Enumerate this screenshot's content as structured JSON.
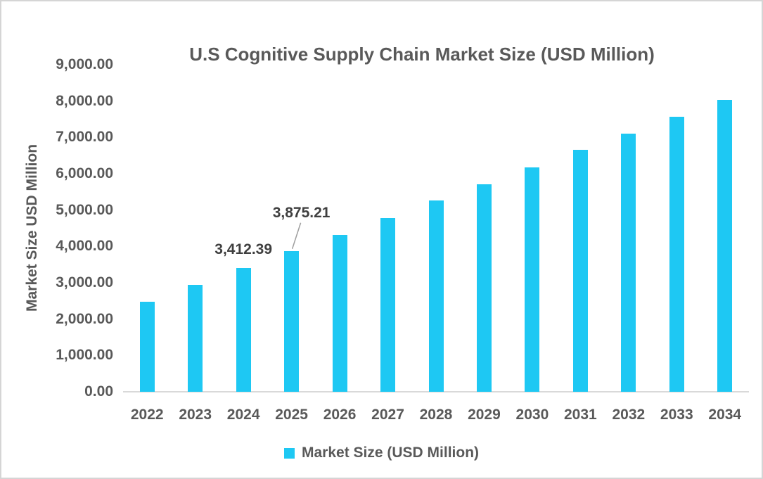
{
  "chart": {
    "title": "U.S Cognitive Supply Chain Market Size (USD Million)",
    "y_axis_title": "Market Size USD Million",
    "legend_label": "Market Size (USD Million)"
  },
  "colors": {
    "bar": "#1EC8F3",
    "axis_text": "#595959",
    "data_label_text": "#3F3F3F",
    "baseline": "#D9D9D9",
    "border": "#D5D5D5",
    "leader_line": "#9E9E9E"
  },
  "chart_data": {
    "type": "bar",
    "title": "U.S Cognitive Supply Chain Market Size (USD Million)",
    "xlabel": "",
    "ylabel": "Market Size USD Million",
    "categories": [
      "2022",
      "2023",
      "2024",
      "2025",
      "2026",
      "2027",
      "2028",
      "2029",
      "2030",
      "2031",
      "2032",
      "2033",
      "2034"
    ],
    "series": [
      {
        "name": "Market Size (USD Million)",
        "values": [
          2480,
          2940,
          3412.39,
          3875.21,
          4320,
          4780,
          5260,
          5710,
          6170,
          6660,
          7110,
          7570,
          8030
        ]
      }
    ],
    "ylim": [
      0,
      9000
    ],
    "y_tick_step": 1000,
    "y_tick_labels": [
      "0.00",
      "1,000.00",
      "2,000.00",
      "3,000.00",
      "4,000.00",
      "5,000.00",
      "6,000.00",
      "7,000.00",
      "8,000.00",
      "9,000.00"
    ],
    "grid": false,
    "legend_position": "bottom",
    "data_labels": [
      {
        "category": "2024",
        "text": "3,412.39",
        "leader_line": false
      },
      {
        "category": "2025",
        "text": "3,875.21",
        "leader_line": true
      }
    ]
  }
}
